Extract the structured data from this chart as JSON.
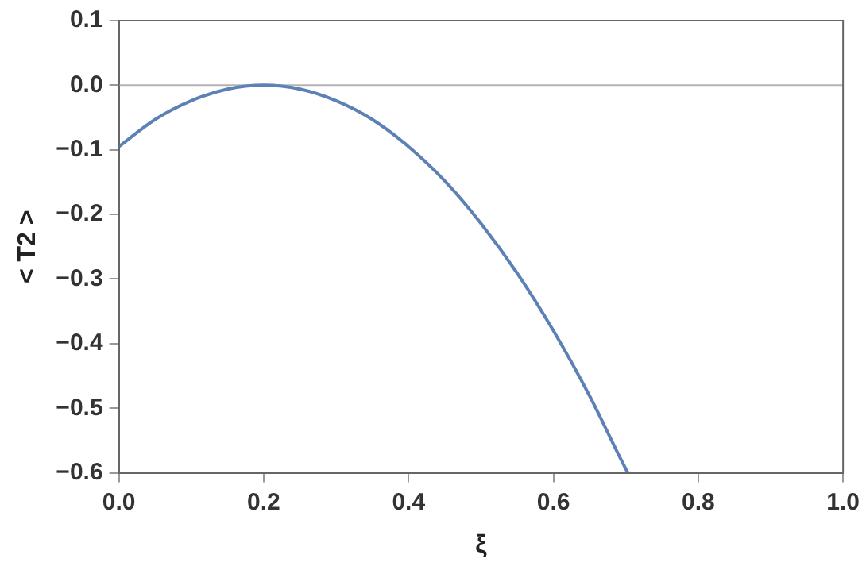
{
  "chart_data": {
    "type": "line",
    "xlabel": "ξ",
    "ylabel": "< T2 >",
    "x": [
      0,
      0.05,
      0.1,
      0.15,
      0.2,
      0.25,
      0.3,
      0.35,
      0.4,
      0.45,
      0.5,
      0.55,
      0.6,
      0.65,
      0.7,
      0.703
    ],
    "series": [
      {
        "color": "#5e81b5",
        "values": [
          -0.095,
          -0.053,
          -0.024,
          -0.006,
          0,
          -0.006,
          -0.024,
          -0.053,
          -0.095,
          -0.148,
          -0.214,
          -0.291,
          -0.38,
          -0.481,
          -0.594,
          -0.6
        ]
      }
    ],
    "xlim": [
      0,
      1
    ],
    "ylim": [
      -0.6,
      0.1
    ],
    "xticks": [
      {
        "value": 0,
        "label": "0.0"
      },
      {
        "value": 0.2,
        "label": "0.2"
      },
      {
        "value": 0.4,
        "label": "0.4"
      },
      {
        "value": 0.6,
        "label": "0.6"
      },
      {
        "value": 0.8,
        "label": "0.8"
      },
      {
        "value": 1,
        "label": "1.0"
      }
    ],
    "yticks": [
      {
        "value": -0.6,
        "label": "−0.6"
      },
      {
        "value": -0.5,
        "label": "−0.5"
      },
      {
        "value": -0.4,
        "label": "−0.4"
      },
      {
        "value": -0.3,
        "label": "−0.3"
      },
      {
        "value": -0.2,
        "label": "−0.2"
      },
      {
        "value": -0.1,
        "label": "−0.1"
      },
      {
        "value": 0,
        "label": "0.0"
      },
      {
        "value": 0.1,
        "label": "0.1"
      }
    ],
    "ref_lines": [
      {
        "axis": "y",
        "value": 0,
        "color": "#b3b3b3"
      }
    ],
    "grid": false,
    "legend": false,
    "marker": "none",
    "line_style": "solid"
  }
}
